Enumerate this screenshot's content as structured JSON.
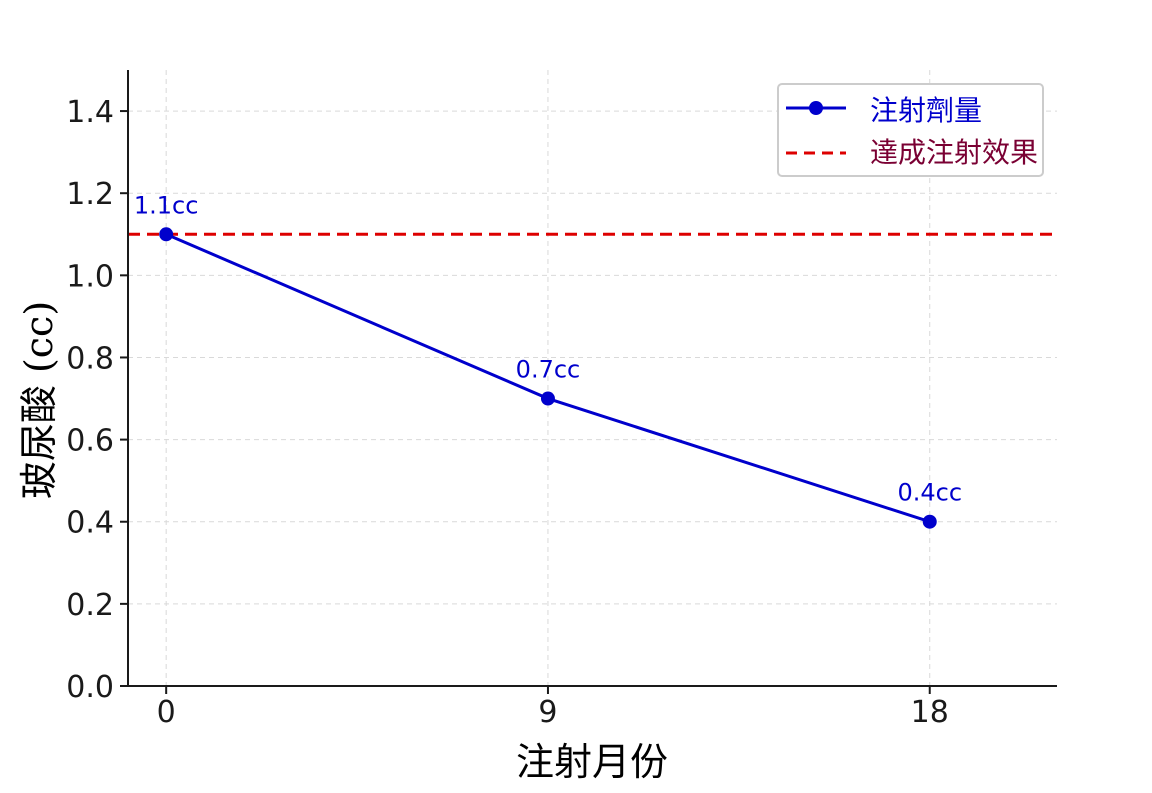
{
  "chart_data": {
    "type": "line",
    "title": "",
    "xlabel": "注射月份",
    "ylabel": "玻尿酸 (cc)",
    "categories": [
      "0",
      "9",
      "18"
    ],
    "ylim": [
      0,
      1.5
    ],
    "yticks": [
      "0.0",
      "0.2",
      "0.4",
      "0.6",
      "0.8",
      "1.0",
      "1.2",
      "1.4"
    ],
    "grid": true,
    "legend_position": "top-right",
    "series": [
      {
        "name": "注射劑量",
        "x": [
          0,
          9,
          18
        ],
        "values": [
          1.1,
          0.7,
          0.4
        ],
        "labels": [
          "1.1cc",
          "0.7cc",
          "0.4cc"
        ],
        "color": "#0000cc",
        "style": "solid",
        "marker": "circle"
      }
    ],
    "reference_lines": [
      {
        "name": "達成注射效果",
        "y": 1.1,
        "color": "#dd0000",
        "style": "dashed"
      }
    ],
    "legend_text_colors": [
      "#0000cc",
      "#7a0033"
    ]
  }
}
